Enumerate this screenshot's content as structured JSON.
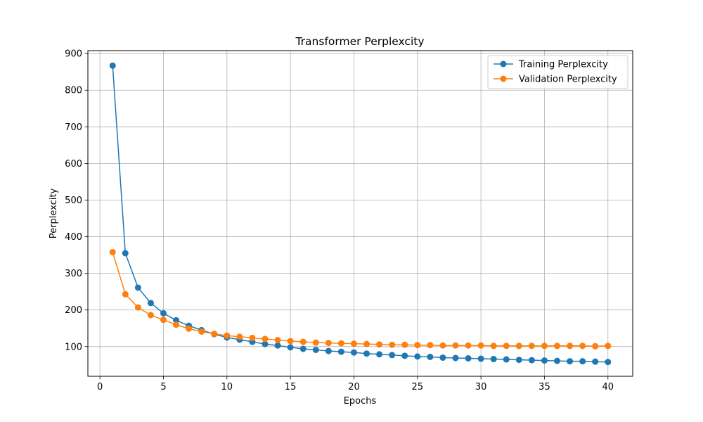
{
  "chart_data": {
    "type": "line",
    "title": "Transformer Perplexcity",
    "xlabel": "Epochs",
    "ylabel": "Perplexcity",
    "xlim": [
      -0.95,
      41.95
    ],
    "ylim": [
      19,
      908
    ],
    "xticks": [
      0,
      5,
      10,
      15,
      20,
      25,
      30,
      35,
      40
    ],
    "yticks": [
      100,
      200,
      300,
      400,
      500,
      600,
      700,
      800,
      900
    ],
    "grid": true,
    "legend_position": "top-right",
    "x": [
      1,
      2,
      3,
      4,
      5,
      6,
      7,
      8,
      9,
      10,
      11,
      12,
      13,
      14,
      15,
      16,
      17,
      18,
      19,
      20,
      21,
      22,
      23,
      24,
      25,
      26,
      27,
      28,
      29,
      30,
      31,
      32,
      33,
      34,
      35,
      36,
      37,
      38,
      39,
      40
    ],
    "series": [
      {
        "name": "Training Perplexcity",
        "color": "#1f77b4",
        "values": [
          867,
          355,
          261,
          219,
          191,
          172,
          157,
          145,
          134,
          125,
          119,
          113,
          107,
          103,
          98,
          94,
          91,
          88,
          86,
          84,
          81,
          79,
          77,
          75,
          73,
          72,
          70,
          69,
          68,
          67,
          66,
          65,
          64,
          63,
          62,
          61,
          60,
          60,
          59,
          58
        ]
      },
      {
        "name": "Validation Perplexcity",
        "color": "#ff7f0e",
        "values": [
          358,
          243,
          207,
          186,
          173,
          160,
          149,
          141,
          135,
          130,
          127,
          124,
          121,
          118,
          115,
          113,
          111,
          110,
          109,
          108,
          107,
          106,
          105,
          105,
          104,
          104,
          103,
          103,
          103,
          103,
          102,
          102,
          102,
          102,
          102,
          102,
          102,
          102,
          101,
          102
        ]
      }
    ]
  }
}
